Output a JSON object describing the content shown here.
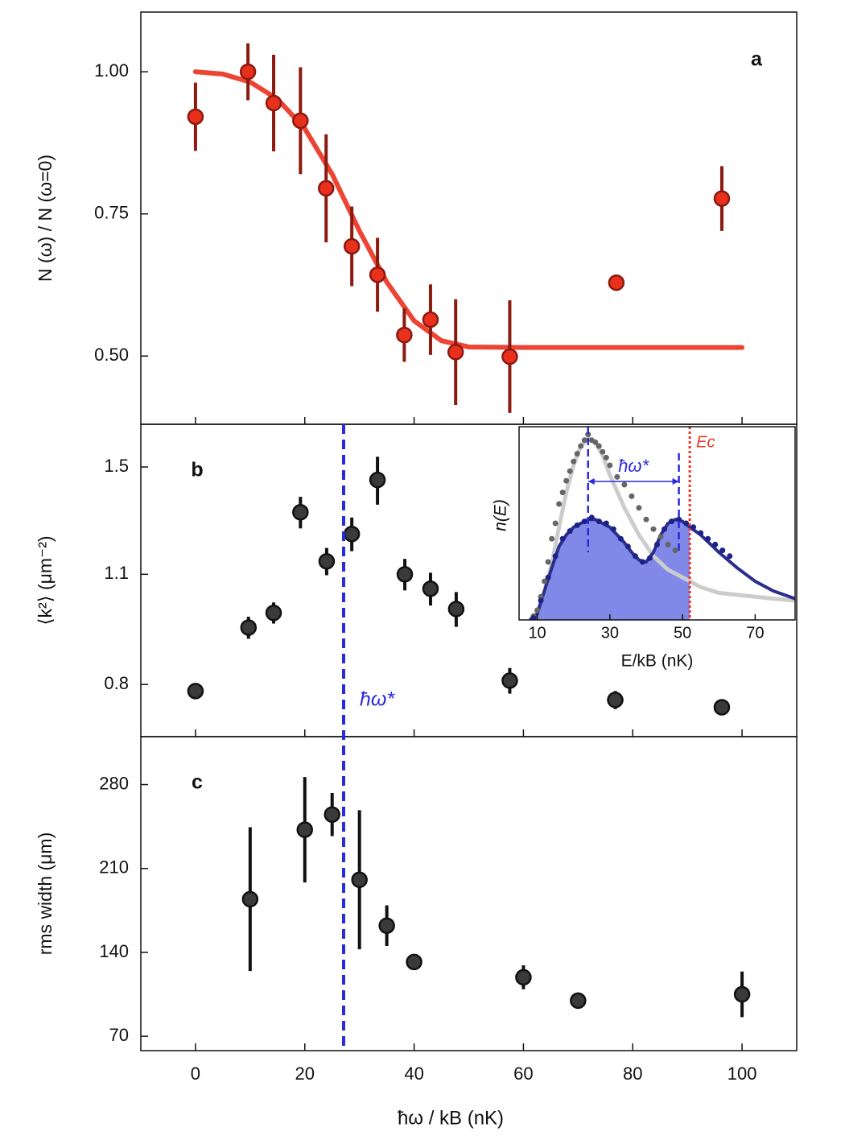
{
  "chart_data": [
    {
      "type": "scatter",
      "panel_label": "a",
      "ylabel": "N (ω) / N (ω=0)",
      "ylim": [
        0.38,
        1.105
      ],
      "yticks": [
        {
          "value": 0.5,
          "label": "0.50"
        },
        {
          "value": 0.75,
          "label": "0.75"
        },
        {
          "value": 1,
          "label": "1.00"
        }
      ],
      "points": {
        "color": "#e8301c",
        "error_color": "#8b1a10",
        "x": [
          0,
          9.6,
          14.3,
          19.2,
          23.9,
          28.6,
          33.3,
          38.2,
          43,
          47.6,
          57.5,
          77,
          96.3
        ],
        "values": [
          0.921,
          1.0,
          0.945,
          0.914,
          0.795,
          0.693,
          0.643,
          0.537,
          0.564,
          0.507,
          0.499,
          0.629,
          0.777
        ],
        "errors": [
          0.06,
          0.05,
          0.085,
          0.094,
          0.095,
          0.07,
          0.065,
          0.047,
          0.062,
          0.093,
          0.099,
          0.014,
          0.057
        ]
      },
      "fit": {
        "color": "#ee4433",
        "x": [
          0,
          5,
          10,
          15,
          20,
          25,
          30,
          35,
          40,
          45,
          50,
          60,
          70,
          80,
          90,
          100
        ],
        "values": [
          1.0,
          0.996,
          0.982,
          0.952,
          0.9,
          0.82,
          0.72,
          0.63,
          0.562,
          0.527,
          0.516,
          0.515,
          0.515,
          0.515,
          0.515,
          0.515
        ]
      }
    },
    {
      "type": "scatter",
      "panel_label": "b",
      "ylabel": "⟨k²⟩ (μm⁻²)",
      "log_scale": true,
      "ylim": [
        0.688,
        1.697
      ],
      "yticks": [
        0.8,
        1.1,
        1.5
      ],
      "points": {
        "color": "#3a3a3a",
        "error_color": "#111111",
        "x": [
          0,
          9.7,
          14.3,
          19.2,
          24,
          28.6,
          33.3,
          38.3,
          43,
          47.7,
          57.5,
          76.8,
          96.3
        ],
        "values": [
          0.785,
          0.943,
          0.984,
          1.316,
          1.142,
          1.236,
          1.445,
          1.1,
          1.055,
          0.995,
          0.809,
          0.765,
          0.749
        ],
        "errors": [
          0.01,
          0.03,
          0.03,
          0.06,
          0.045,
          0.06,
          0.1,
          0.05,
          0.05,
          0.05,
          0.03,
          0.02,
          0.015
        ]
      },
      "vline": 27.1,
      "vline_label": "ħω*",
      "vline_color": "#2a2add"
    },
    {
      "type": "scatter",
      "panel_label": "c",
      "ylabel": "rms width (μm)",
      "xlabel": "ħω / kB (nK)",
      "xlim": [
        -10,
        110
      ],
      "xticks": [
        0,
        20,
        40,
        60,
        80,
        100
      ],
      "ylim": [
        58,
        320
      ],
      "yticks": [
        70,
        140,
        210,
        280
      ],
      "points": {
        "color": "#3a3a3a",
        "error_color": "#111111",
        "x": [
          10,
          20,
          25,
          30,
          35,
          40,
          60,
          70,
          100
        ],
        "values": [
          184.4,
          242.3,
          255,
          200.6,
          162.3,
          132,
          119.2,
          99.7,
          105
        ],
        "errors": [
          60,
          44,
          18,
          58,
          17,
          4,
          10,
          3,
          19
        ]
      }
    },
    {
      "type": "line",
      "xlabel": "E/kB (nK)",
      "ylabel": "n(E)",
      "xlim": [
        5,
        81
      ],
      "xticks": [
        10,
        30,
        50,
        70
      ],
      "ylim": [
        0,
        1
      ],
      "gray_curve": {
        "color": "#cccccc",
        "x": [
          8,
          10,
          12,
          14,
          16,
          18,
          20,
          22,
          24,
          26,
          28,
          30,
          34,
          38,
          42,
          46,
          50,
          55,
          60,
          65,
          70,
          75,
          81
        ],
        "values": [
          0,
          0.04,
          0.15,
          0.29,
          0.48,
          0.66,
          0.8,
          0.9,
          0.94,
          0.92,
          0.85,
          0.75,
          0.58,
          0.44,
          0.33,
          0.26,
          0.22,
          0.17,
          0.14,
          0.13,
          0.12,
          0.11,
          0.1
        ]
      },
      "gray_points": {
        "color": "#666666",
        "x": [
          9,
          10,
          11,
          12,
          13,
          14,
          15,
          16,
          17,
          18,
          19,
          20,
          21,
          22,
          23,
          24,
          25,
          26,
          27,
          28,
          29,
          30,
          32,
          34,
          36,
          38,
          40,
          42,
          44,
          46,
          48
        ],
        "values": [
          0.02,
          0.05,
          0.12,
          0.2,
          0.3,
          0.42,
          0.5,
          0.6,
          0.66,
          0.72,
          0.77,
          0.82,
          0.86,
          0.9,
          0.93,
          0.96,
          0.93,
          0.92,
          0.9,
          0.87,
          0.84,
          0.8,
          0.74,
          0.7,
          0.64,
          0.58,
          0.52,
          0.47,
          0.43,
          0.39,
          0.36
        ]
      },
      "blue_curve": {
        "color": "#2a2e8c",
        "fill": "#8088e8",
        "x": [
          8,
          10,
          12,
          14,
          16,
          18,
          20,
          22,
          24,
          26,
          28,
          30,
          32,
          34,
          36,
          38,
          40,
          42,
          44,
          46,
          48,
          50,
          52,
          55,
          60,
          65,
          70,
          75,
          81
        ],
        "values": [
          0,
          0.03,
          0.15,
          0.27,
          0.38,
          0.44,
          0.48,
          0.5,
          0.52,
          0.52,
          0.5,
          0.48,
          0.44,
          0.4,
          0.35,
          0.31,
          0.3,
          0.35,
          0.44,
          0.5,
          0.52,
          0.51,
          0.48,
          0.44,
          0.35,
          0.27,
          0.2,
          0.15,
          0.11
        ]
      },
      "blue_points": {
        "color": "#1c2288",
        "x": [
          9,
          11,
          13,
          15,
          17,
          19,
          21,
          23,
          25,
          27,
          29,
          31,
          33,
          35,
          37,
          39,
          41,
          43,
          45,
          47,
          49,
          51,
          53,
          55,
          57,
          59,
          61,
          63
        ],
        "values": [
          0.01,
          0.1,
          0.22,
          0.33,
          0.42,
          0.46,
          0.49,
          0.51,
          0.53,
          0.51,
          0.5,
          0.47,
          0.42,
          0.38,
          0.33,
          0.3,
          0.32,
          0.39,
          0.47,
          0.51,
          0.52,
          0.5,
          0.48,
          0.45,
          0.42,
          0.39,
          0.36,
          0.33
        ]
      },
      "markers": [
        24,
        49
      ],
      "marker_label": "ħω*",
      "marker_color": "#2a2add",
      "ec": 52,
      "ec_label": "Ec",
      "ec_color": "#ee3322"
    }
  ]
}
